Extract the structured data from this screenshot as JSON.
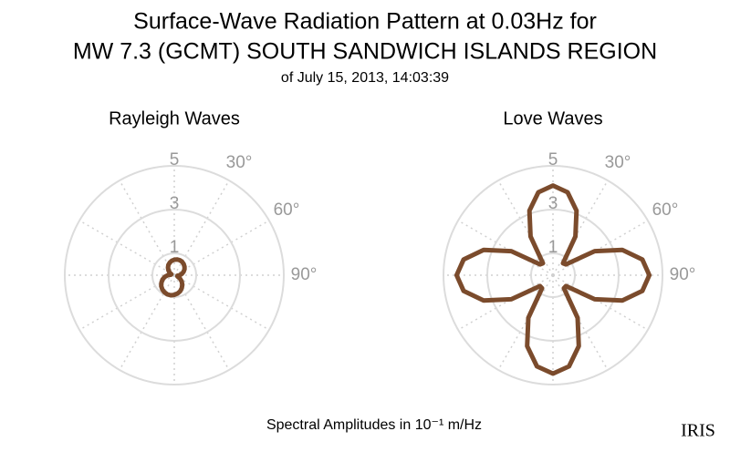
{
  "title_lines": [
    "Surface-Wave Radiation Pattern at 0.03Hz for",
    "MW 7.3 (GCMT) SOUTH SANDWICH ISLANDS REGION"
  ],
  "subtitle": "of July 15, 2013, 14:03:39",
  "footer": "Spectral Amplitudes in 10⁻¹ m/Hz",
  "logo": "IRIS",
  "chart_data": [
    {
      "type": "polar",
      "title": "Rayleigh Waves",
      "color": "#7b4b2c",
      "theta": [
        0,
        10,
        20,
        30,
        40,
        50,
        60,
        70,
        80,
        90,
        100,
        110,
        120,
        130,
        140,
        150,
        160,
        170,
        180,
        190,
        200,
        210,
        220,
        230,
        240,
        250,
        260,
        270,
        280,
        290,
        300,
        310,
        320,
        330,
        340,
        350
      ],
      "r": [
        0.71,
        0.73,
        0.73,
        0.71,
        0.67,
        0.61,
        0.54,
        0.45,
        0.35,
        0.25,
        0.15,
        0.15,
        0.3,
        0.44,
        0.57,
        0.68,
        0.78,
        0.85,
        0.9,
        0.93,
        0.93,
        0.9,
        0.85,
        0.78,
        0.68,
        0.57,
        0.44,
        0.3,
        0.15,
        0.14,
        0.25,
        0.35,
        0.45,
        0.54,
        0.61,
        0.67
      ],
      "rlim": [
        0,
        5
      ],
      "rticks": [
        1,
        3,
        5
      ],
      "theta_grid": [
        0,
        30,
        60,
        90,
        120,
        150,
        180,
        210,
        240,
        270,
        300,
        330
      ],
      "thetaticks": [
        {
          "value": 30,
          "label": "30°"
        },
        {
          "value": 60,
          "label": "60°"
        },
        {
          "value": 90,
          "label": "90°"
        }
      ]
    },
    {
      "type": "polar",
      "title": "Love Waves",
      "color": "#7b4b2c",
      "theta": [
        0,
        10,
        20,
        30,
        40,
        50,
        60,
        70,
        80,
        90,
        100,
        110,
        120,
        130,
        140,
        150,
        160,
        170,
        180,
        190,
        200,
        210,
        220,
        230,
        240,
        250,
        260,
        270,
        280,
        290,
        300,
        310,
        320,
        330,
        340,
        350
      ],
      "r": [
        4.1,
        3.85,
        3.14,
        2.05,
        0.71,
        0.77,
        2.2,
        3.37,
        4.14,
        4.4,
        4.14,
        3.37,
        2.2,
        0.77,
        0.78,
        2.25,
        3.45,
        4.23,
        4.5,
        4.23,
        3.45,
        2.25,
        0.78,
        0.77,
        2.2,
        3.37,
        4.14,
        4.4,
        4.14,
        3.37,
        2.2,
        0.77,
        0.71,
        2.05,
        3.14,
        3.85
      ],
      "rlim": [
        0,
        5
      ],
      "rticks": [
        1,
        3,
        5
      ],
      "theta_grid": [
        0,
        30,
        60,
        90,
        120,
        150,
        180,
        210,
        240,
        270,
        300,
        330
      ],
      "thetaticks": [
        {
          "value": 30,
          "label": "30°"
        },
        {
          "value": 60,
          "label": "60°"
        },
        {
          "value": 90,
          "label": "90°"
        }
      ]
    }
  ]
}
